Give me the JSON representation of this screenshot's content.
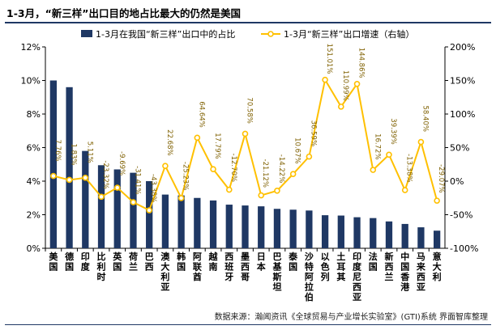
{
  "header": {
    "title": "1-3月，“新三样”出口目的地占比最大的仍然是美国"
  },
  "footer": {
    "source": "数据来源：瀚闻资讯《全球贸易与产业增长实验室》(GTI)系统  界面智库整理"
  },
  "chart_data": {
    "type": "bar+line",
    "categories": [
      "美国",
      "德国",
      "印度",
      "比利时",
      "英国",
      "荷兰",
      "巴西",
      "澳大利亚",
      "韩国",
      "阿联酋",
      "越南",
      "西班牙",
      "墨西哥",
      "日本",
      "巴基斯坦",
      "泰国",
      "沙特阿拉伯",
      "以色列",
      "土耳其",
      "印度尼西亚",
      "法国",
      "新西兰",
      "中国香港",
      "马来西亚",
      "意大利"
    ],
    "series": [
      {
        "name": "1-3月在我国“新三样”出口中的占比",
        "type": "bar",
        "axis": "left",
        "values": [
          10.0,
          9.6,
          5.8,
          4.95,
          4.7,
          4.5,
          4.0,
          3.2,
          3.15,
          3.0,
          2.85,
          2.6,
          2.55,
          2.5,
          2.35,
          2.3,
          2.25,
          1.97,
          1.95,
          1.85,
          1.8,
          1.6,
          1.45,
          1.25,
          1.05
        ]
      },
      {
        "name": "1-3月“新三样”出口增速（右轴）",
        "type": "line",
        "axis": "right",
        "values": [
          7.76,
          1.83,
          5.11,
          -23.32,
          -9.69,
          -31.41,
          -43.38,
          22.68,
          -25.23,
          64.64,
          17.79,
          -12.7,
          70.58,
          -21.12,
          -14.22,
          10.67,
          36.59,
          151.01,
          110.99,
          144.86,
          16.72,
          39.39,
          -13.38,
          58.4,
          -29.07
        ],
        "labels": [
          "7.76%",
          "1.83%",
          "5.11%",
          "-23.32%",
          "-9.69%",
          "-31.41%",
          "-43.38%",
          "22.68%",
          "-25.23%",
          "64.64%",
          "17.79%",
          "-12.70%",
          "70.58%",
          "-21.12%",
          "-14.22%",
          "10.67%",
          "36.59%",
          "151.01%",
          "110.99%",
          "144.86%",
          "16.72%",
          "39.39%",
          "-13.38%",
          "58.40%",
          "-29.07%"
        ]
      }
    ],
    "y_left": {
      "min": 0,
      "max": 12,
      "ticks": [
        "0%",
        "2%",
        "4%",
        "6%",
        "8%",
        "10%",
        "12%"
      ]
    },
    "y_right": {
      "min": -100,
      "max": 200,
      "ticks": [
        "-100%",
        "-50%",
        "0%",
        "50%",
        "100%",
        "150%",
        "200%"
      ]
    },
    "legend_position": "top",
    "grid": false,
    "colors": {
      "bar": "#1f3864",
      "line": "#ffc000",
      "marker_fill": "#ffffff",
      "label": "#7f6000"
    }
  }
}
